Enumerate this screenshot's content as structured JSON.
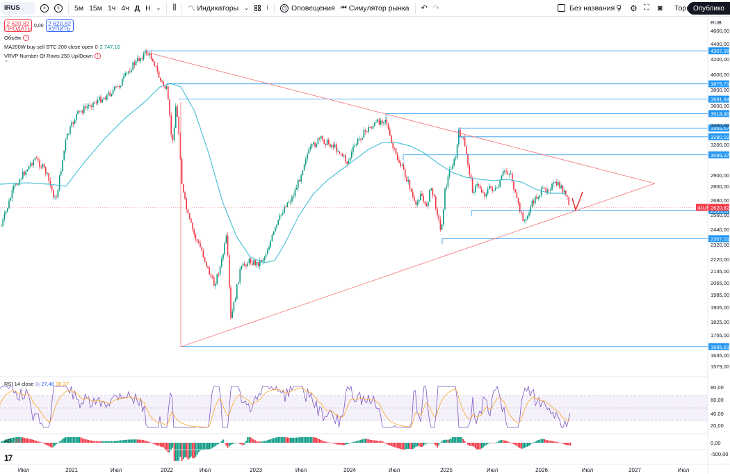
{
  "toolbar": {
    "symbol": "IRUS",
    "intervals": [
      "5м",
      "15м",
      "1ч",
      "4ч",
      "Д",
      "Н"
    ],
    "indicators_label": "Индикаторы",
    "alerts_label": "Оповещения",
    "replay_label": "Симулятор рынка",
    "layout_name": "Без названия",
    "trade_label": "Торговать",
    "publish_label": "Опублико"
  },
  "quote": {
    "sell_price": "2 620,82",
    "sell_label": "ПРОДАТЬ",
    "spread": "0,00",
    "buy_price": "2 620,82",
    "buy_label": "КУПИТЬ"
  },
  "legend": {
    "volume": "Объём",
    "ma_label": "MA200W buy sell BTC 200 close open 0",
    "ma_value": "2 747,16",
    "vrvp": "VRVP Number Of Rows 250 Up/Down"
  },
  "price_axis": {
    "currency": "RUB",
    "ticks": [
      "4600,00",
      "4400,00",
      "4200,00",
      "4000,00",
      "3800,00",
      "3600,00",
      "3400,00",
      "3200,00",
      "2900,00",
      "2800,00",
      "2680,00",
      "2560,00",
      "2440,00",
      "2320,00",
      "2220,00",
      "2145,00",
      "2065,00",
      "1985,00",
      "1905,00",
      "1825,00",
      "1755,00",
      "1635,00",
      "1579,00"
    ],
    "levels": [
      {
        "label": "4307,99",
        "value": 4307.99
      },
      {
        "label": "3875,73",
        "value": 3875.73
      },
      {
        "label": "3681,84",
        "value": 3681.84
      },
      {
        "label": "3518,90",
        "value": 3518.9
      },
      {
        "label": "3369,67",
        "value": 3369.67
      },
      {
        "label": "3280,02",
        "value": 3280.02
      },
      {
        "label": "3099,37",
        "value": 3099.37
      },
      {
        "label": "2595,57",
        "value": 2595.57
      },
      {
        "label": "2367,01",
        "value": 2367.01
      },
      {
        "label": "1685,61",
        "value": 1685.61
      }
    ],
    "current_symbol": "IRUS",
    "current_price": "2620,82",
    "current_value": 2620.82
  },
  "time_axis": {
    "labels": [
      "Июл",
      "2021",
      "Июл",
      "2022",
      "Июл",
      "2023",
      "Июл",
      "2024",
      "Июл",
      "2025",
      "Июл",
      "2026",
      "Июл",
      "2027",
      "Июл"
    ]
  },
  "rsi": {
    "label": "RSI 14 close",
    "value1": "27,46",
    "value2": "38,27",
    "ticks": [
      "80,00",
      "60,00",
      "40,00",
      "20,00"
    ]
  },
  "ao": {
    "label": "AO",
    "value": "-39,84",
    "ticks": [
      "0,00",
      "-500,00"
    ]
  },
  "colors": {
    "up": "#089981",
    "down": "#f23645",
    "ma": "#4fc3d7",
    "level": "#2196f3",
    "trend": "#f77c80",
    "rsi": "#7e57c2",
    "rsi_ma": "#f9a825"
  },
  "logo": "17"
}
